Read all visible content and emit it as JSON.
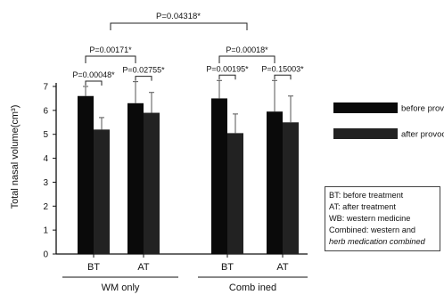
{
  "chart_data": {
    "type": "bar",
    "ylabel": "Total nasal volume(cm³)",
    "ylim": [
      0,
      7
    ],
    "yticks": [
      "0",
      "1",
      "2",
      "3",
      "4",
      "5",
      "6",
      "7"
    ],
    "groups": [
      {
        "name": "WM only",
        "categories": [
          "BT",
          "AT"
        ]
      },
      {
        "name": "Comb ined",
        "categories": [
          "BT",
          "AT"
        ]
      }
    ],
    "series": [
      {
        "name": "before provocation",
        "color": "#0a0a0a",
        "values": [
          6.6,
          6.3,
          6.5,
          5.95
        ],
        "errors": [
          0.4,
          0.9,
          0.75,
          1.3
        ]
      },
      {
        "name": "after provocation",
        "color": "#222222",
        "values": [
          5.2,
          5.9,
          5.05,
          5.5
        ],
        "errors": [
          0.5,
          0.85,
          0.8,
          1.1
        ]
      }
    ],
    "annotations": {
      "within": [
        "P=0.00048*",
        "P=0.02755*",
        "P=0.00195*",
        "P=0.15003*"
      ],
      "between_BT_AT": [
        "P=0.00171*",
        "P=0.00018*"
      ],
      "between_groups": "P=0.04318*"
    }
  },
  "notes": [
    {
      "text": "BT: before treatment",
      "italic": false
    },
    {
      "text": "AT: after treatment",
      "italic": false
    },
    {
      "text": "WB: western medicine",
      "italic": false
    },
    {
      "text": "Combined: western and",
      "italic": false
    },
    {
      "text": "herb medication combined",
      "italic": true
    }
  ]
}
